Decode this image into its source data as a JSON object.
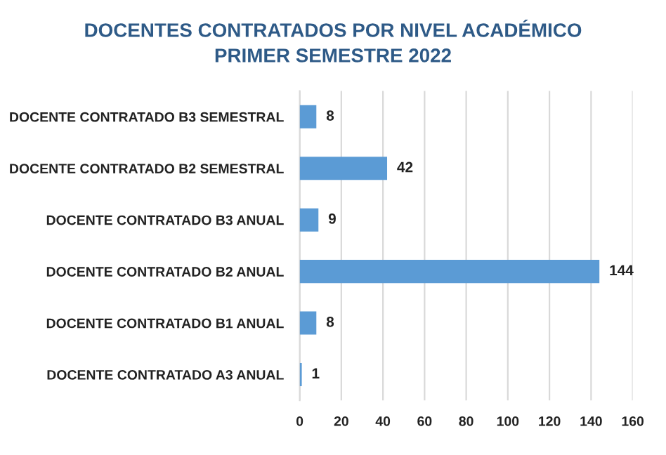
{
  "chart_data": {
    "type": "bar",
    "orientation": "horizontal",
    "title": "DOCENTES CONTRATADOS POR NIVEL ACADÉMICO\nPRIMER SEMESTRE 2022",
    "categories": [
      "DOCENTE CONTRATADO B3 SEMESTRAL",
      "DOCENTE CONTRATADO B2 SEMESTRAL",
      "DOCENTE CONTRATADO B3 ANUAL",
      "DOCENTE CONTRATADO B2 ANUAL",
      "DOCENTE CONTRATADO B1 ANUAL",
      "DOCENTE CONTRATADO A3 ANUAL"
    ],
    "values": [
      8,
      42,
      9,
      144,
      8,
      1
    ],
    "color": "#5b9bd5",
    "xlim": [
      0,
      160
    ],
    "xticks": [
      0,
      20,
      40,
      60,
      80,
      100,
      120,
      140,
      160
    ],
    "grid": "x",
    "data_labels": true
  }
}
